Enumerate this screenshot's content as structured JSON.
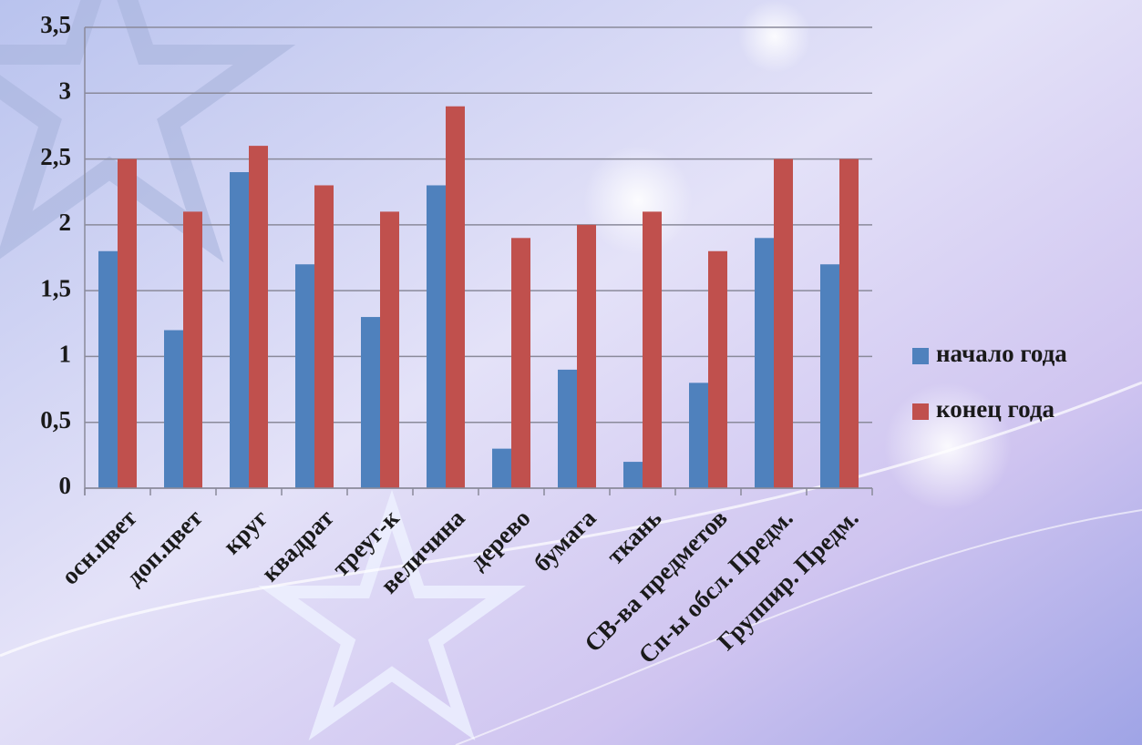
{
  "chart_data": {
    "type": "bar",
    "categories": [
      "осн.цвет",
      "доп.цвет",
      "круг",
      "квадрат",
      "треуг-к",
      "величина",
      "дерево",
      "бумага",
      "ткань",
      "СВ-ва предметов",
      "Сп-ы обсл. Предм.",
      "Группир. Предм."
    ],
    "series": [
      {
        "name": "начало года",
        "color": "#4f81bd",
        "values": [
          1.8,
          1.2,
          2.4,
          1.7,
          1.3,
          2.3,
          0.3,
          0.9,
          0.2,
          0.8,
          1.9,
          1.7
        ]
      },
      {
        "name": "конец года",
        "color": "#c0504d",
        "values": [
          2.5,
          2.1,
          2.6,
          2.3,
          2.1,
          2.9,
          1.9,
          2.0,
          2.1,
          1.8,
          2.5,
          2.5
        ]
      }
    ],
    "ylim": [
      0,
      3.5
    ],
    "yticks": [
      0,
      {
        "value": 0.5,
        "label": "0,5"
      },
      1,
      {
        "value": 1.5,
        "label": "1,5"
      },
      2,
      {
        "value": 2.5,
        "label": "2,5"
      },
      3,
      {
        "value": 3.5,
        "label": "3,5"
      }
    ],
    "grid": true,
    "legend": "right"
  }
}
